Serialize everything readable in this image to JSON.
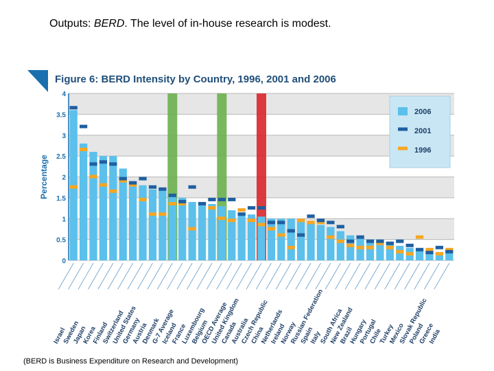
{
  "slide": {
    "title_prefix": "Outputs: ",
    "title_em": "BERD",
    "title_suffix": ".  The level of in-house research is modest.",
    "footnote": "(BERD is Business Expenditure on Research and Development)"
  },
  "chart_data": {
    "type": "bar",
    "title": "Figure 6:  BERD Intensity by Country, 1996, 2001 and 2006",
    "ylabel": "Percentage",
    "ylim": [
      0,
      4
    ],
    "yticks": [
      "0",
      "0.5",
      "1",
      "1.5",
      "2",
      "2.5",
      "3",
      "3.5",
      "4"
    ],
    "grid": "alternating bands",
    "legend_position": "top-right",
    "colors": {
      "2006": "#5bc0eb",
      "2001": "#1f5fa0",
      "1996": "#f5a623",
      "highlight_green": "#6ab04c",
      "highlight_red": "#d9262a"
    },
    "highlighted": {
      "G-7 Average": "green",
      "OECD Average": "green",
      "Czech Republic": "red"
    },
    "categories": [
      "Israel",
      "Sweden",
      "Japan",
      "Korea",
      "Finland",
      "Switzerland",
      "United States",
      "Germany",
      "Austria",
      "Denmark",
      "G-7 Average",
      "Iceland",
      "France",
      "Luxembourg",
      "Belgium",
      "OECD Average",
      "United Kingdom",
      "Canada",
      "Australia",
      "Czech Republic",
      "China",
      "Netherlands",
      "Ireland",
      "Norway",
      "Russian Federation",
      "Spain",
      "Italy",
      "South Africa",
      "New Zealand",
      "Brazil",
      "Hungary",
      "Portugal",
      "Chile",
      "Turkey",
      "Mexico",
      "Slovak Republic",
      "Poland",
      "Greece",
      "India"
    ],
    "series": [
      {
        "name": "2006",
        "values": [
          3.6,
          2.8,
          2.6,
          2.5,
          2.5,
          2.2,
          1.85,
          1.8,
          1.7,
          1.7,
          1.55,
          1.5,
          1.4,
          1.4,
          1.35,
          1.3,
          1.2,
          1.15,
          1.1,
          1.05,
          1.0,
          1.0,
          1.0,
          0.95,
          0.9,
          0.85,
          0.8,
          0.7,
          0.6,
          0.55,
          0.5,
          0.5,
          0.45,
          0.35,
          0.3,
          0.25,
          0.2,
          0.2,
          0.2
        ]
      },
      {
        "name": "2001",
        "values": [
          3.65,
          3.2,
          2.3,
          2.35,
          2.3,
          1.95,
          1.85,
          1.95,
          1.75,
          1.7,
          1.55,
          1.4,
          1.75,
          1.35,
          1.45,
          1.45,
          1.45,
          1.1,
          1.25,
          1.25,
          0.9,
          0.9,
          0.7,
          0.6,
          1.05,
          0.95,
          0.9,
          0.8,
          0.45,
          0.55,
          0.45,
          0.45,
          0.4,
          0.45,
          0.35,
          0.25,
          0.18,
          0.3,
          0.2
        ]
      },
      {
        "name": "1996",
        "values": [
          1.75,
          2.65,
          2.0,
          1.8,
          1.65,
          1.9,
          1.8,
          1.45,
          1.1,
          1.1,
          1.35,
          1.35,
          0.75,
          1.35,
          1.25,
          1.0,
          0.95,
          1.2,
          0.95,
          0.85,
          0.75,
          0.6,
          0.3,
          0.95,
          0.9,
          0.9,
          0.55,
          0.45,
          0.35,
          0.3,
          0.3,
          0.4,
          0.3,
          0.2,
          0.15,
          0.55,
          0.25,
          0.15,
          0.25
        ]
      }
    ]
  }
}
